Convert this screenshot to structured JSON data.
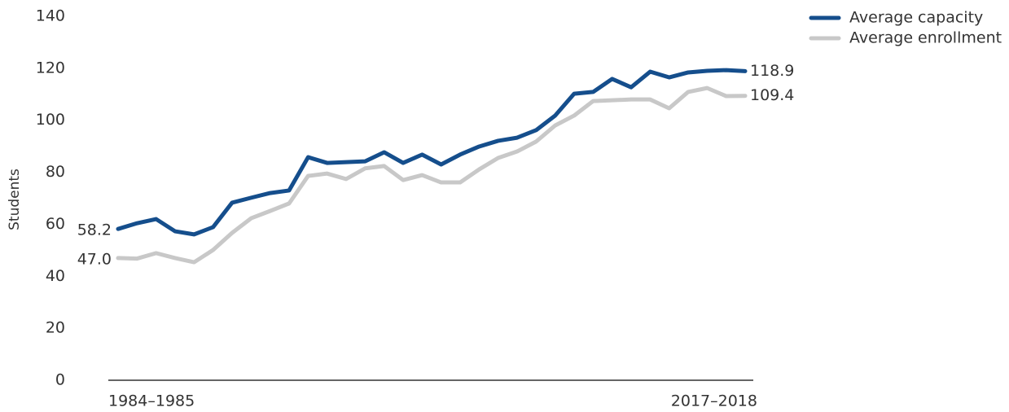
{
  "chart_data": {
    "type": "line",
    "y_label": "Students",
    "categories": [
      "1984–1985",
      null,
      null,
      null,
      null,
      null,
      null,
      null,
      null,
      null,
      null,
      null,
      null,
      null,
      null,
      null,
      null,
      null,
      null,
      null,
      null,
      null,
      null,
      null,
      null,
      null,
      null,
      null,
      null,
      null,
      null,
      null,
      null,
      "2017–2018"
    ],
    "series": [
      {
        "name": "Average capacity",
        "color": "#154e8c",
        "values": [
          58.2,
          60.4,
          62.0,
          57.3,
          56.1,
          58.9,
          68.3,
          70.2,
          72.0,
          73.0,
          85.8,
          83.6,
          83.9,
          84.2,
          87.7,
          83.6,
          86.8,
          83.0,
          86.8,
          89.9,
          92.1,
          93.3,
          96.2,
          101.8,
          110.2,
          110.9,
          115.9,
          112.7,
          118.7,
          116.5,
          118.4,
          119.0,
          119.3,
          118.9
        ],
        "value_labels": [
          "58.2",
          null,
          null,
          null,
          null,
          null,
          null,
          null,
          null,
          null,
          null,
          null,
          null,
          null,
          null,
          null,
          null,
          null,
          null,
          null,
          null,
          null,
          null,
          null,
          null,
          null,
          null,
          null,
          null,
          null,
          null,
          null,
          null,
          "118.9"
        ]
      },
      {
        "name": "Average enrollment",
        "color": "#c8c8c8",
        "values": [
          47.0,
          46.8,
          48.9,
          47.0,
          45.4,
          50.1,
          56.7,
          62.3,
          65.1,
          68.0,
          78.6,
          79.5,
          77.4,
          81.5,
          82.4,
          77.0,
          78.9,
          76.1,
          76.1,
          81.1,
          85.5,
          88.0,
          91.8,
          98.0,
          101.8,
          107.4,
          107.7,
          108.0,
          108.0,
          104.6,
          110.9,
          112.4,
          109.3,
          109.4
        ],
        "value_labels": [
          "47.0",
          null,
          null,
          null,
          null,
          null,
          null,
          null,
          null,
          null,
          null,
          null,
          null,
          null,
          null,
          null,
          null,
          null,
          null,
          null,
          null,
          null,
          null,
          null,
          null,
          null,
          null,
          null,
          null,
          null,
          null,
          null,
          null,
          "109.4"
        ]
      }
    ],
    "ylim": [
      0,
      140
    ],
    "yticks": [
      0,
      20,
      40,
      60,
      80,
      100,
      120,
      140
    ],
    "grid": false,
    "legend": "top-right"
  }
}
